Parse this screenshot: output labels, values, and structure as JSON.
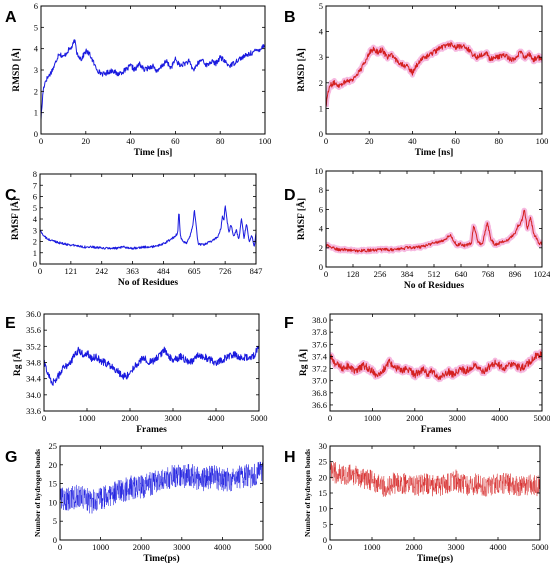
{
  "colors": {
    "blue": "#1a1adf",
    "red": "#d42020",
    "red_halo": "#f4a8d8",
    "red_band": "#ff6b6b"
  },
  "chart_data": [
    {
      "panel": "A",
      "type": "line",
      "style": "blue",
      "xlabel": "Time [ns]",
      "ylabel": "RMSD [Å]",
      "xlim": [
        0,
        100
      ],
      "ylim": [
        0,
        6
      ],
      "xticks": [
        "0",
        "20",
        "40",
        "60",
        "80",
        "100"
      ],
      "yticks": [
        "0",
        "1",
        "2",
        "3",
        "4",
        "5",
        "6"
      ],
      "x": [
        0,
        1,
        2,
        4,
        6,
        8,
        10,
        12,
        14,
        15,
        16,
        18,
        20,
        22,
        24,
        26,
        28,
        30,
        32,
        34,
        36,
        38,
        40,
        42,
        44,
        46,
        48,
        50,
        52,
        54,
        56,
        58,
        60,
        62,
        64,
        66,
        68,
        70,
        72,
        74,
        76,
        78,
        80,
        82,
        84,
        86,
        88,
        90,
        92,
        94,
        96,
        98,
        100
      ],
      "values": [
        0.7,
        2.1,
        2.5,
        2.8,
        3.2,
        3.8,
        3.6,
        3.9,
        4.1,
        4.4,
        3.8,
        3.5,
        3.9,
        3.7,
        3.2,
        2.9,
        2.8,
        2.9,
        3.0,
        2.8,
        2.9,
        3.0,
        3.2,
        3.0,
        3.3,
        3.0,
        3.1,
        3.2,
        2.9,
        3.2,
        3.4,
        3.1,
        3.5,
        3.2,
        3.3,
        3.4,
        3.0,
        3.3,
        3.5,
        3.2,
        3.4,
        3.3,
        3.6,
        3.4,
        3.2,
        3.3,
        3.5,
        3.6,
        3.7,
        3.8,
        3.9,
        4.0,
        4.2
      ],
      "noise": 0.12
    },
    {
      "panel": "B",
      "type": "line",
      "style": "red_halo",
      "xlabel": "Time [ns]",
      "ylabel": "RMSD [Å]",
      "xlim": [
        0,
        100
      ],
      "ylim": [
        0,
        5
      ],
      "xticks": [
        "0",
        "20",
        "40",
        "60",
        "80",
        "100"
      ],
      "yticks": [
        "0",
        "1",
        "2",
        "3",
        "4",
        "5"
      ],
      "x": [
        0,
        1,
        2,
        4,
        6,
        8,
        10,
        12,
        14,
        16,
        18,
        20,
        22,
        24,
        26,
        28,
        30,
        32,
        34,
        36,
        38,
        40,
        42,
        44,
        46,
        48,
        50,
        52,
        54,
        56,
        58,
        60,
        62,
        64,
        66,
        68,
        70,
        72,
        74,
        76,
        78,
        80,
        82,
        84,
        86,
        88,
        90,
        92,
        94,
        96,
        98,
        100
      ],
      "values": [
        1.1,
        1.7,
        1.9,
        2.0,
        1.9,
        2.0,
        2.1,
        2.1,
        2.3,
        2.5,
        2.8,
        3.2,
        3.3,
        3.2,
        3.3,
        3.0,
        3.1,
        2.9,
        2.8,
        2.7,
        2.6,
        2.4,
        2.7,
        2.9,
        3.0,
        3.1,
        3.2,
        3.3,
        3.4,
        3.5,
        3.5,
        3.4,
        3.4,
        3.4,
        3.3,
        3.1,
        3.0,
        3.1,
        3.2,
        2.9,
        3.0,
        3.0,
        3.1,
        3.0,
        2.9,
        3.0,
        3.2,
        3.0,
        3.1,
        2.9,
        3.0,
        2.9
      ],
      "noise": 0.1
    },
    {
      "panel": "C",
      "type": "line",
      "style": "blue",
      "xlabel": "No of Residues",
      "ylabel": "RMSF [Å]",
      "xlim": [
        0,
        847
      ],
      "ylim": [
        0,
        8
      ],
      "xticks": [
        "0",
        "121",
        "242",
        "363",
        "484",
        "605",
        "726",
        "847"
      ],
      "yticks": [
        "0",
        "1",
        "2",
        "3",
        "4",
        "5",
        "6",
        "7",
        "8"
      ],
      "x": [
        0,
        15,
        30,
        60,
        90,
        121,
        150,
        180,
        210,
        242,
        270,
        300,
        330,
        363,
        400,
        430,
        460,
        484,
        500,
        520,
        540,
        545,
        550,
        560,
        575,
        590,
        600,
        605,
        612,
        620,
        640,
        660,
        680,
        700,
        710,
        715,
        722,
        726,
        732,
        740,
        750,
        760,
        770,
        780,
        790,
        800,
        810,
        820,
        830,
        840,
        847
      ],
      "values": [
        3.0,
        2.5,
        2.2,
        2.0,
        1.8,
        1.7,
        1.6,
        1.5,
        1.5,
        1.4,
        1.4,
        1.4,
        1.5,
        1.4,
        1.5,
        1.5,
        1.6,
        1.8,
        2.0,
        2.3,
        2.7,
        4.8,
        2.5,
        2.0,
        1.8,
        2.6,
        3.5,
        4.9,
        3.5,
        1.8,
        1.7,
        1.9,
        2.1,
        2.5,
        3.2,
        4.3,
        3.9,
        5.2,
        4.2,
        2.8,
        3.5,
        2.4,
        3.0,
        2.2,
        4.0,
        2.3,
        3.6,
        2.0,
        2.6,
        1.5,
        2.8
      ],
      "noise": 0.1
    },
    {
      "panel": "D",
      "type": "line",
      "style": "red_halo",
      "xlabel": "No of Residues",
      "ylabel": "RMSF [Å]",
      "xlim": [
        0,
        1024
      ],
      "ylim": [
        0,
        10
      ],
      "xticks": [
        "0",
        "128",
        "256",
        "384",
        "512",
        "640",
        "768",
        "896",
        "1024"
      ],
      "yticks": [
        "0",
        "2",
        "4",
        "6",
        "8",
        "10"
      ],
      "x": [
        0,
        30,
        64,
        100,
        128,
        180,
        256,
        320,
        384,
        450,
        512,
        560,
        590,
        600,
        620,
        640,
        660,
        690,
        700,
        720,
        740,
        765,
        780,
        800,
        820,
        860,
        896,
        910,
        925,
        940,
        955,
        970,
        985,
        1000,
        1010,
        1024
      ],
      "values": [
        2.3,
        2.0,
        1.8,
        1.8,
        1.7,
        1.7,
        1.8,
        1.8,
        2.0,
        2.1,
        2.5,
        2.8,
        3.4,
        2.9,
        2.3,
        2.4,
        2.2,
        2.5,
        4.3,
        2.6,
        2.3,
        4.7,
        3.0,
        2.3,
        2.5,
        2.8,
        3.5,
        4.3,
        4.6,
        5.9,
        4.0,
        5.2,
        3.4,
        3.0,
        2.4,
        2.5
      ],
      "noise": 0.15
    },
    {
      "panel": "E",
      "type": "line",
      "style": "blue",
      "xlabel": "Frames",
      "ylabel": "Rg [Å]",
      "xlim": [
        0,
        5000
      ],
      "ylim": [
        33.6,
        36.0
      ],
      "xticks": [
        "0",
        "1000",
        "2000",
        "3000",
        "4000",
        "5000"
      ],
      "yticks": [
        "33.6",
        "34.0",
        "34.4",
        "34.8",
        "35.2",
        "35.6",
        "36.0"
      ],
      "x": [
        0,
        100,
        200,
        300,
        400,
        500,
        600,
        700,
        800,
        900,
        1000,
        1100,
        1200,
        1300,
        1400,
        1500,
        1600,
        1700,
        1800,
        1900,
        2000,
        2100,
        2200,
        2300,
        2400,
        2500,
        2600,
        2700,
        2800,
        2900,
        3000,
        3100,
        3200,
        3300,
        3400,
        3500,
        3600,
        3700,
        3800,
        3900,
        4000,
        4100,
        4200,
        4300,
        4400,
        4500,
        4600,
        4700,
        4800,
        4900,
        5000
      ],
      "values": [
        34.8,
        34.5,
        34.3,
        34.4,
        34.6,
        34.7,
        34.8,
        34.95,
        35.1,
        35.0,
        35.05,
        34.9,
        34.95,
        34.85,
        34.8,
        34.75,
        34.7,
        34.6,
        34.5,
        34.45,
        34.55,
        34.7,
        34.8,
        34.9,
        34.85,
        34.8,
        34.9,
        35.0,
        35.1,
        34.95,
        34.85,
        34.9,
        34.95,
        34.85,
        34.8,
        34.9,
        35.0,
        34.95,
        34.9,
        34.85,
        34.8,
        34.85,
        34.9,
        34.95,
        35.0,
        34.95,
        34.9,
        34.95,
        34.9,
        35.0,
        35.2
      ],
      "noise": 0.09
    },
    {
      "panel": "F",
      "type": "line",
      "style": "red_halo",
      "xlabel": "Frames",
      "ylabel": "Rg [Å]",
      "xlim": [
        0,
        5000
      ],
      "ylim": [
        36.5,
        38.1
      ],
      "xticks": [
        "0",
        "1000",
        "2000",
        "3000",
        "4000",
        "5000"
      ],
      "yticks": [
        "36.6",
        "36.8",
        "37.0",
        "37.2",
        "37.4",
        "37.6",
        "37.8",
        "38.0"
      ],
      "x": [
        0,
        100,
        200,
        300,
        400,
        500,
        600,
        700,
        800,
        900,
        1000,
        1100,
        1200,
        1300,
        1400,
        1500,
        1600,
        1700,
        1800,
        1900,
        2000,
        2100,
        2200,
        2300,
        2400,
        2500,
        2600,
        2700,
        2800,
        2900,
        3000,
        3100,
        3200,
        3300,
        3400,
        3500,
        3600,
        3700,
        3800,
        3900,
        4000,
        4100,
        4200,
        4300,
        4400,
        4500,
        4600,
        4700,
        4800,
        4900,
        5000
      ],
      "values": [
        37.4,
        37.3,
        37.25,
        37.2,
        37.25,
        37.2,
        37.15,
        37.2,
        37.25,
        37.2,
        37.15,
        37.1,
        37.15,
        37.2,
        37.3,
        37.25,
        37.2,
        37.15,
        37.2,
        37.15,
        37.1,
        37.15,
        37.2,
        37.1,
        37.15,
        37.1,
        37.05,
        37.1,
        37.15,
        37.1,
        37.15,
        37.2,
        37.15,
        37.2,
        37.25,
        37.2,
        37.15,
        37.2,
        37.25,
        37.3,
        37.25,
        37.2,
        37.25,
        37.3,
        37.25,
        37.2,
        37.25,
        37.3,
        37.35,
        37.45,
        37.4
      ],
      "noise": 0.06
    },
    {
      "panel": "G",
      "type": "line",
      "style": "blue_band",
      "xlabel": "Time(ps)",
      "ylabel": "Number of hydrogen bonds",
      "xlim": [
        0,
        5000
      ],
      "ylim": [
        0,
        25
      ],
      "xticks": [
        "0",
        "1000",
        "2000",
        "3000",
        "4000",
        "5000"
      ],
      "yticks": [
        "0",
        "5",
        "10",
        "15",
        "20",
        "25"
      ],
      "x": [
        0,
        250,
        500,
        750,
        1000,
        1250,
        1500,
        1750,
        2000,
        2250,
        2500,
        2750,
        3000,
        3250,
        3500,
        3750,
        4000,
        4250,
        4500,
        4750,
        5000
      ],
      "values": [
        11,
        11,
        12,
        10,
        11,
        12,
        13,
        14,
        14,
        15,
        16,
        17,
        17,
        17,
        16,
        17,
        16,
        16,
        17,
        17,
        18
      ],
      "noise": 3.2
    },
    {
      "panel": "H",
      "type": "line",
      "style": "red_band",
      "xlabel": "Time(ps)",
      "ylabel": "Number of hydrogen bonds",
      "xlim": [
        0,
        5000
      ],
      "ylim": [
        0,
        30
      ],
      "xticks": [
        "0",
        "1000",
        "2000",
        "3000",
        "4000",
        "5000"
      ],
      "yticks": [
        "0",
        "5",
        "10",
        "15",
        "20",
        "25",
        "30"
      ],
      "x": [
        0,
        250,
        500,
        750,
        1000,
        1250,
        1500,
        1750,
        2000,
        2250,
        2500,
        2750,
        3000,
        3250,
        3500,
        3750,
        4000,
        4250,
        4500,
        4750,
        5000
      ],
      "values": [
        22,
        21,
        21,
        20,
        19,
        17,
        18,
        18,
        17,
        18,
        17,
        18,
        19,
        17,
        18,
        17,
        18,
        18,
        17,
        18,
        17
      ],
      "noise": 3.5
    }
  ]
}
